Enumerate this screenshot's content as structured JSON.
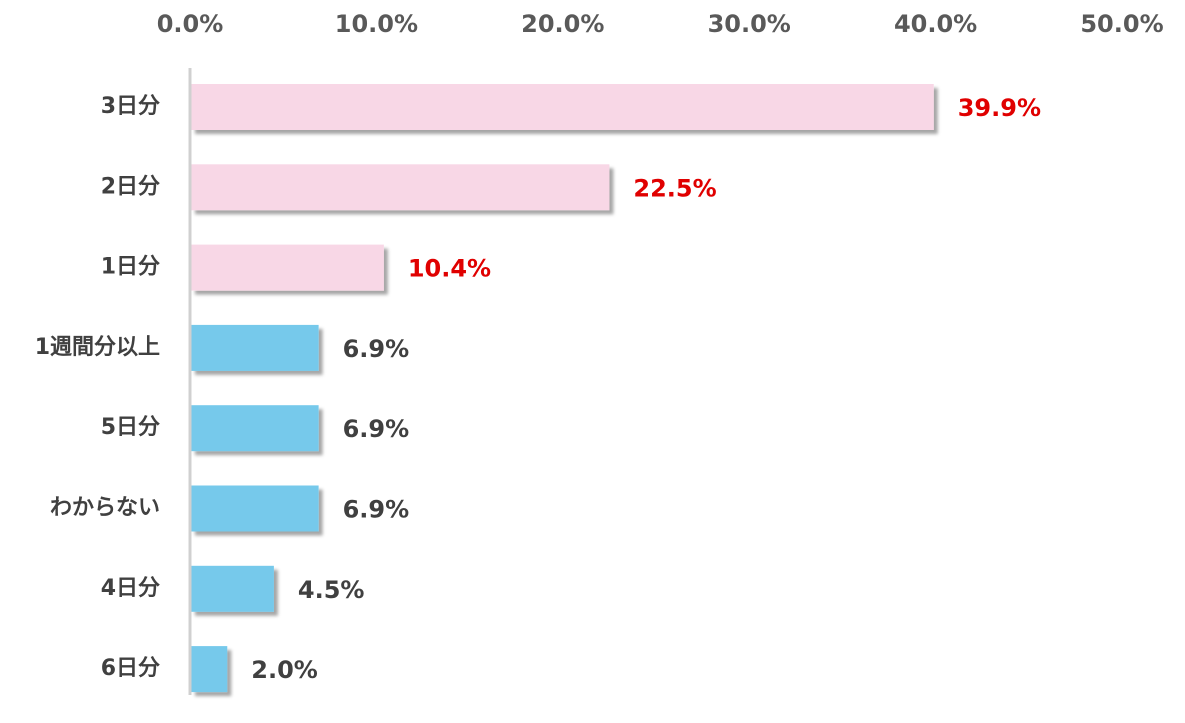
{
  "chart_data": {
    "type": "bar",
    "orientation": "horizontal",
    "title": "",
    "xlabel": "",
    "ylabel": "",
    "xlim": [
      0,
      50
    ],
    "x_tick_labels": [
      "0.0%",
      "10.0%",
      "20.0%",
      "30.0%",
      "40.0%",
      "50.0%"
    ],
    "x_axis_position": "top",
    "grid": false,
    "categories": [
      "3日分",
      "2日分",
      "1日分",
      "1週間分以上",
      "5日分",
      "わからない",
      "4日分",
      "6日分"
    ],
    "values": [
      39.9,
      22.5,
      10.4,
      6.9,
      6.9,
      6.9,
      4.5,
      2.0
    ],
    "value_labels": [
      "39.9%",
      "22.5%",
      "10.4%",
      "6.9%",
      "6.9%",
      "6.9%",
      "4.5%",
      "2.0%"
    ],
    "bar_colors": [
      "#f8d7e6",
      "#f8d7e6",
      "#f8d7e6",
      "#76c9eb",
      "#76c9eb",
      "#76c9eb",
      "#76c9eb",
      "#76c9eb"
    ],
    "label_colors": [
      "#e00000",
      "#e00000",
      "#e00000",
      "#404040",
      "#404040",
      "#404040",
      "#404040",
      "#404040"
    ]
  }
}
